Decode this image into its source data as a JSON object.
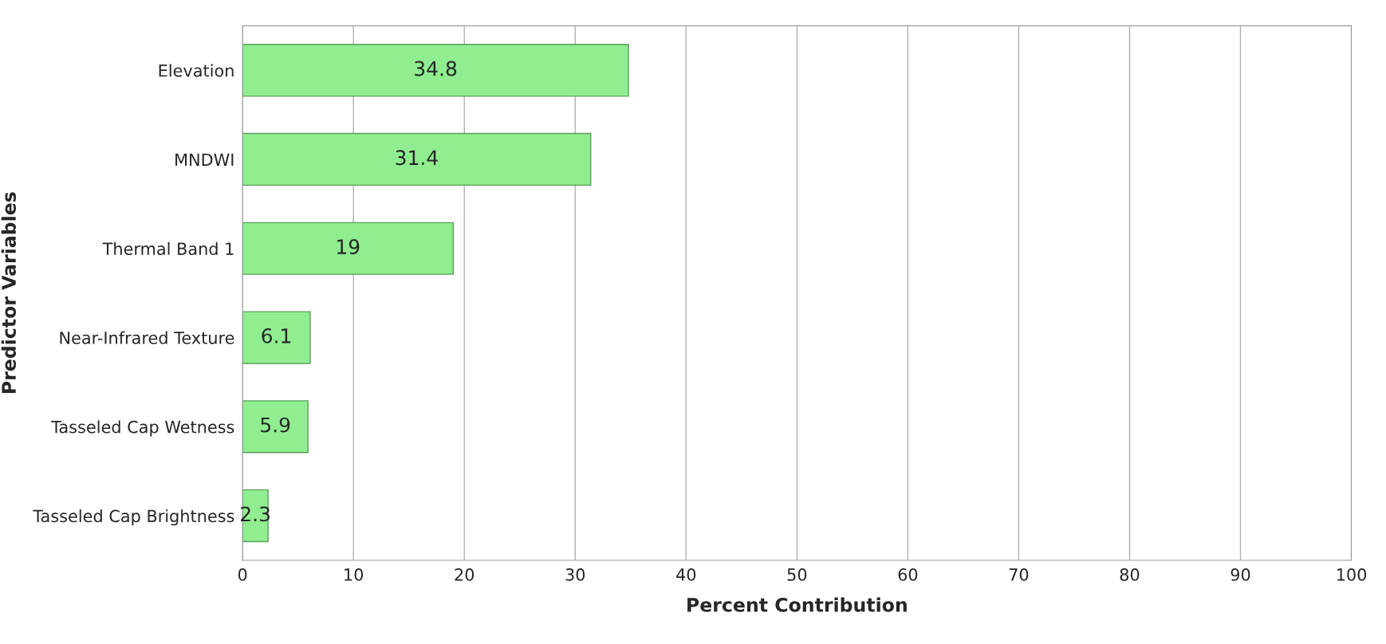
{
  "chart_data": {
    "type": "bar",
    "orientation": "horizontal",
    "xlabel": "Percent Contribution",
    "ylabel": "Predictor Variables",
    "categories": [
      "Elevation",
      "MNDWI",
      "Thermal Band 1",
      "Near-Infrared Texture",
      "Tasseled Cap Wetness",
      "Tasseled Cap Brightness"
    ],
    "values": [
      34.8,
      31.4,
      19,
      6.1,
      5.9,
      2.3
    ],
    "color": "#90ee90",
    "xlim": [
      0,
      100
    ],
    "xticks": [
      0,
      10,
      20,
      30,
      40,
      50,
      60,
      70,
      80,
      90,
      100
    ],
    "grid": "x",
    "data_labels": true
  }
}
